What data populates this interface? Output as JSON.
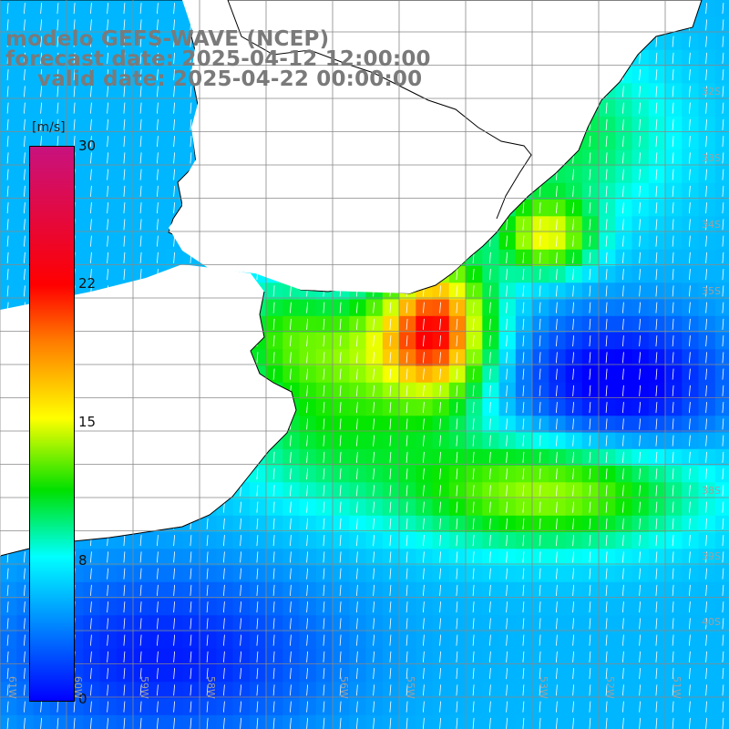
{
  "title": {
    "line1": "modelo GEFS-WAVE (NCEP)",
    "line2": "forecast date: 2025-04-12 12:00:00",
    "line3": "valid date: 2025-04-22 00:00:00"
  },
  "legend": {
    "unit": "[m/s]",
    "ticks": [
      "30",
      "22",
      "15",
      "8",
      "0"
    ],
    "colors": [
      "#c8127f",
      "#ff0000",
      "#ff7a00",
      "#ffff00",
      "#00e000",
      "#00ffff",
      "#0080ff",
      "#0000ff"
    ]
  },
  "lat_labels": [
    "32S",
    "33S",
    "34S",
    "35S",
    "38S",
    "39S",
    "40S"
  ],
  "lon_labels": [
    "61W",
    "60W",
    "59W",
    "58W",
    "56W",
    "55W",
    "53W",
    "52W",
    "51W"
  ],
  "colors": {
    "land": "#ffffff",
    "coast": "#000000",
    "grid": "#888888",
    "arrows": "#ffffff",
    "title": "#7a7a7a"
  }
}
